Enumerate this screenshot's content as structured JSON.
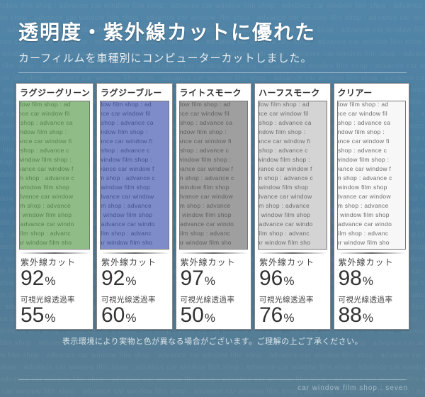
{
  "header": {
    "title": "透明度・紫外線カットに優れた",
    "subtitle": "カーフィルムを車種別にコンピューターカットしました。"
  },
  "bg_text_line": "ndow film shop : advance car window film shop : advance car window film shop : advance car wi",
  "swatch_text_line": "dow film shop : ad\nnce car window fil\n shop : advance ca\nindow film shop : \nance car window fi\n shop : advance c\nwindow film shop :\nvance car window f\nm shop : advance c\n window film shop\ndvance car window \nlm shop : advance \nr window film shop\n advance car windo\nfilm shop : advanc\nar window film sho\n: advance car wind",
  "spec_labels": {
    "uv": "紫外線カット",
    "vlt": "可視光線透過率",
    "pct": "%"
  },
  "products": [
    {
      "name": "ラグジーグリーン",
      "swatch_tint": "rgba(76,149,61,0.62)",
      "uv_cut": "92",
      "vlt": "55"
    },
    {
      "name": "ラグジーブルー",
      "swatch_tint": "rgba(46,69,168,0.62)",
      "uv_cut": "92",
      "vlt": "60"
    },
    {
      "name": "ライトスモーク",
      "swatch_tint": "rgba(90,90,90,0.58)",
      "uv_cut": "97",
      "vlt": "50"
    },
    {
      "name": "ハーフスモーク",
      "swatch_tint": "rgba(120,120,120,0.32)",
      "uv_cut": "96",
      "vlt": "76"
    },
    {
      "name": "クリアー",
      "swatch_tint": "rgba(180,180,180,0.10)",
      "uv_cut": "98",
      "vlt": "88"
    }
  ],
  "disclaimer": "表示環境により実物と色が異なる場合がございます。ご理解の上ご了承ください。",
  "footer": "car window film shop : seven"
}
